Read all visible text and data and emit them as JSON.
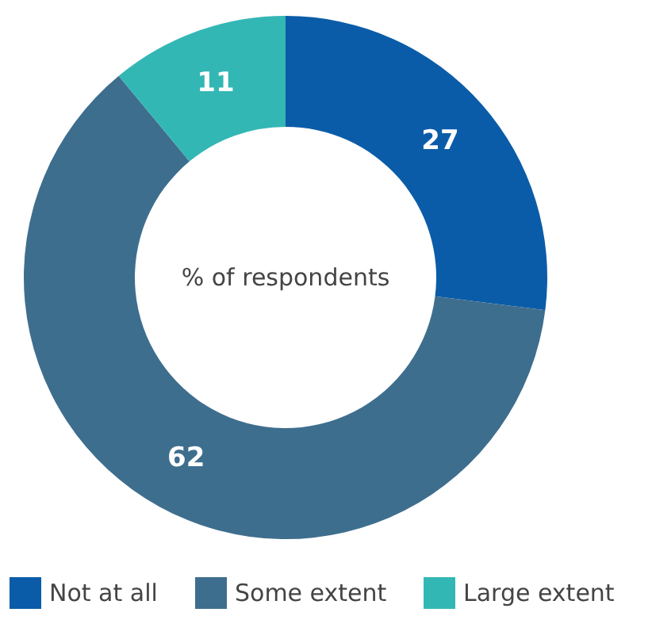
{
  "chart_data": {
    "type": "donut",
    "categories": [
      "Not at all",
      "Some extent",
      "Large extent"
    ],
    "values": [
      27,
      62,
      11
    ],
    "colors": [
      "#0b5ca8",
      "#3e6e8e",
      "#33b7b5"
    ],
    "data_labels": true,
    "annotations": [
      "% of respondents"
    ],
    "legend": "bottom"
  }
}
